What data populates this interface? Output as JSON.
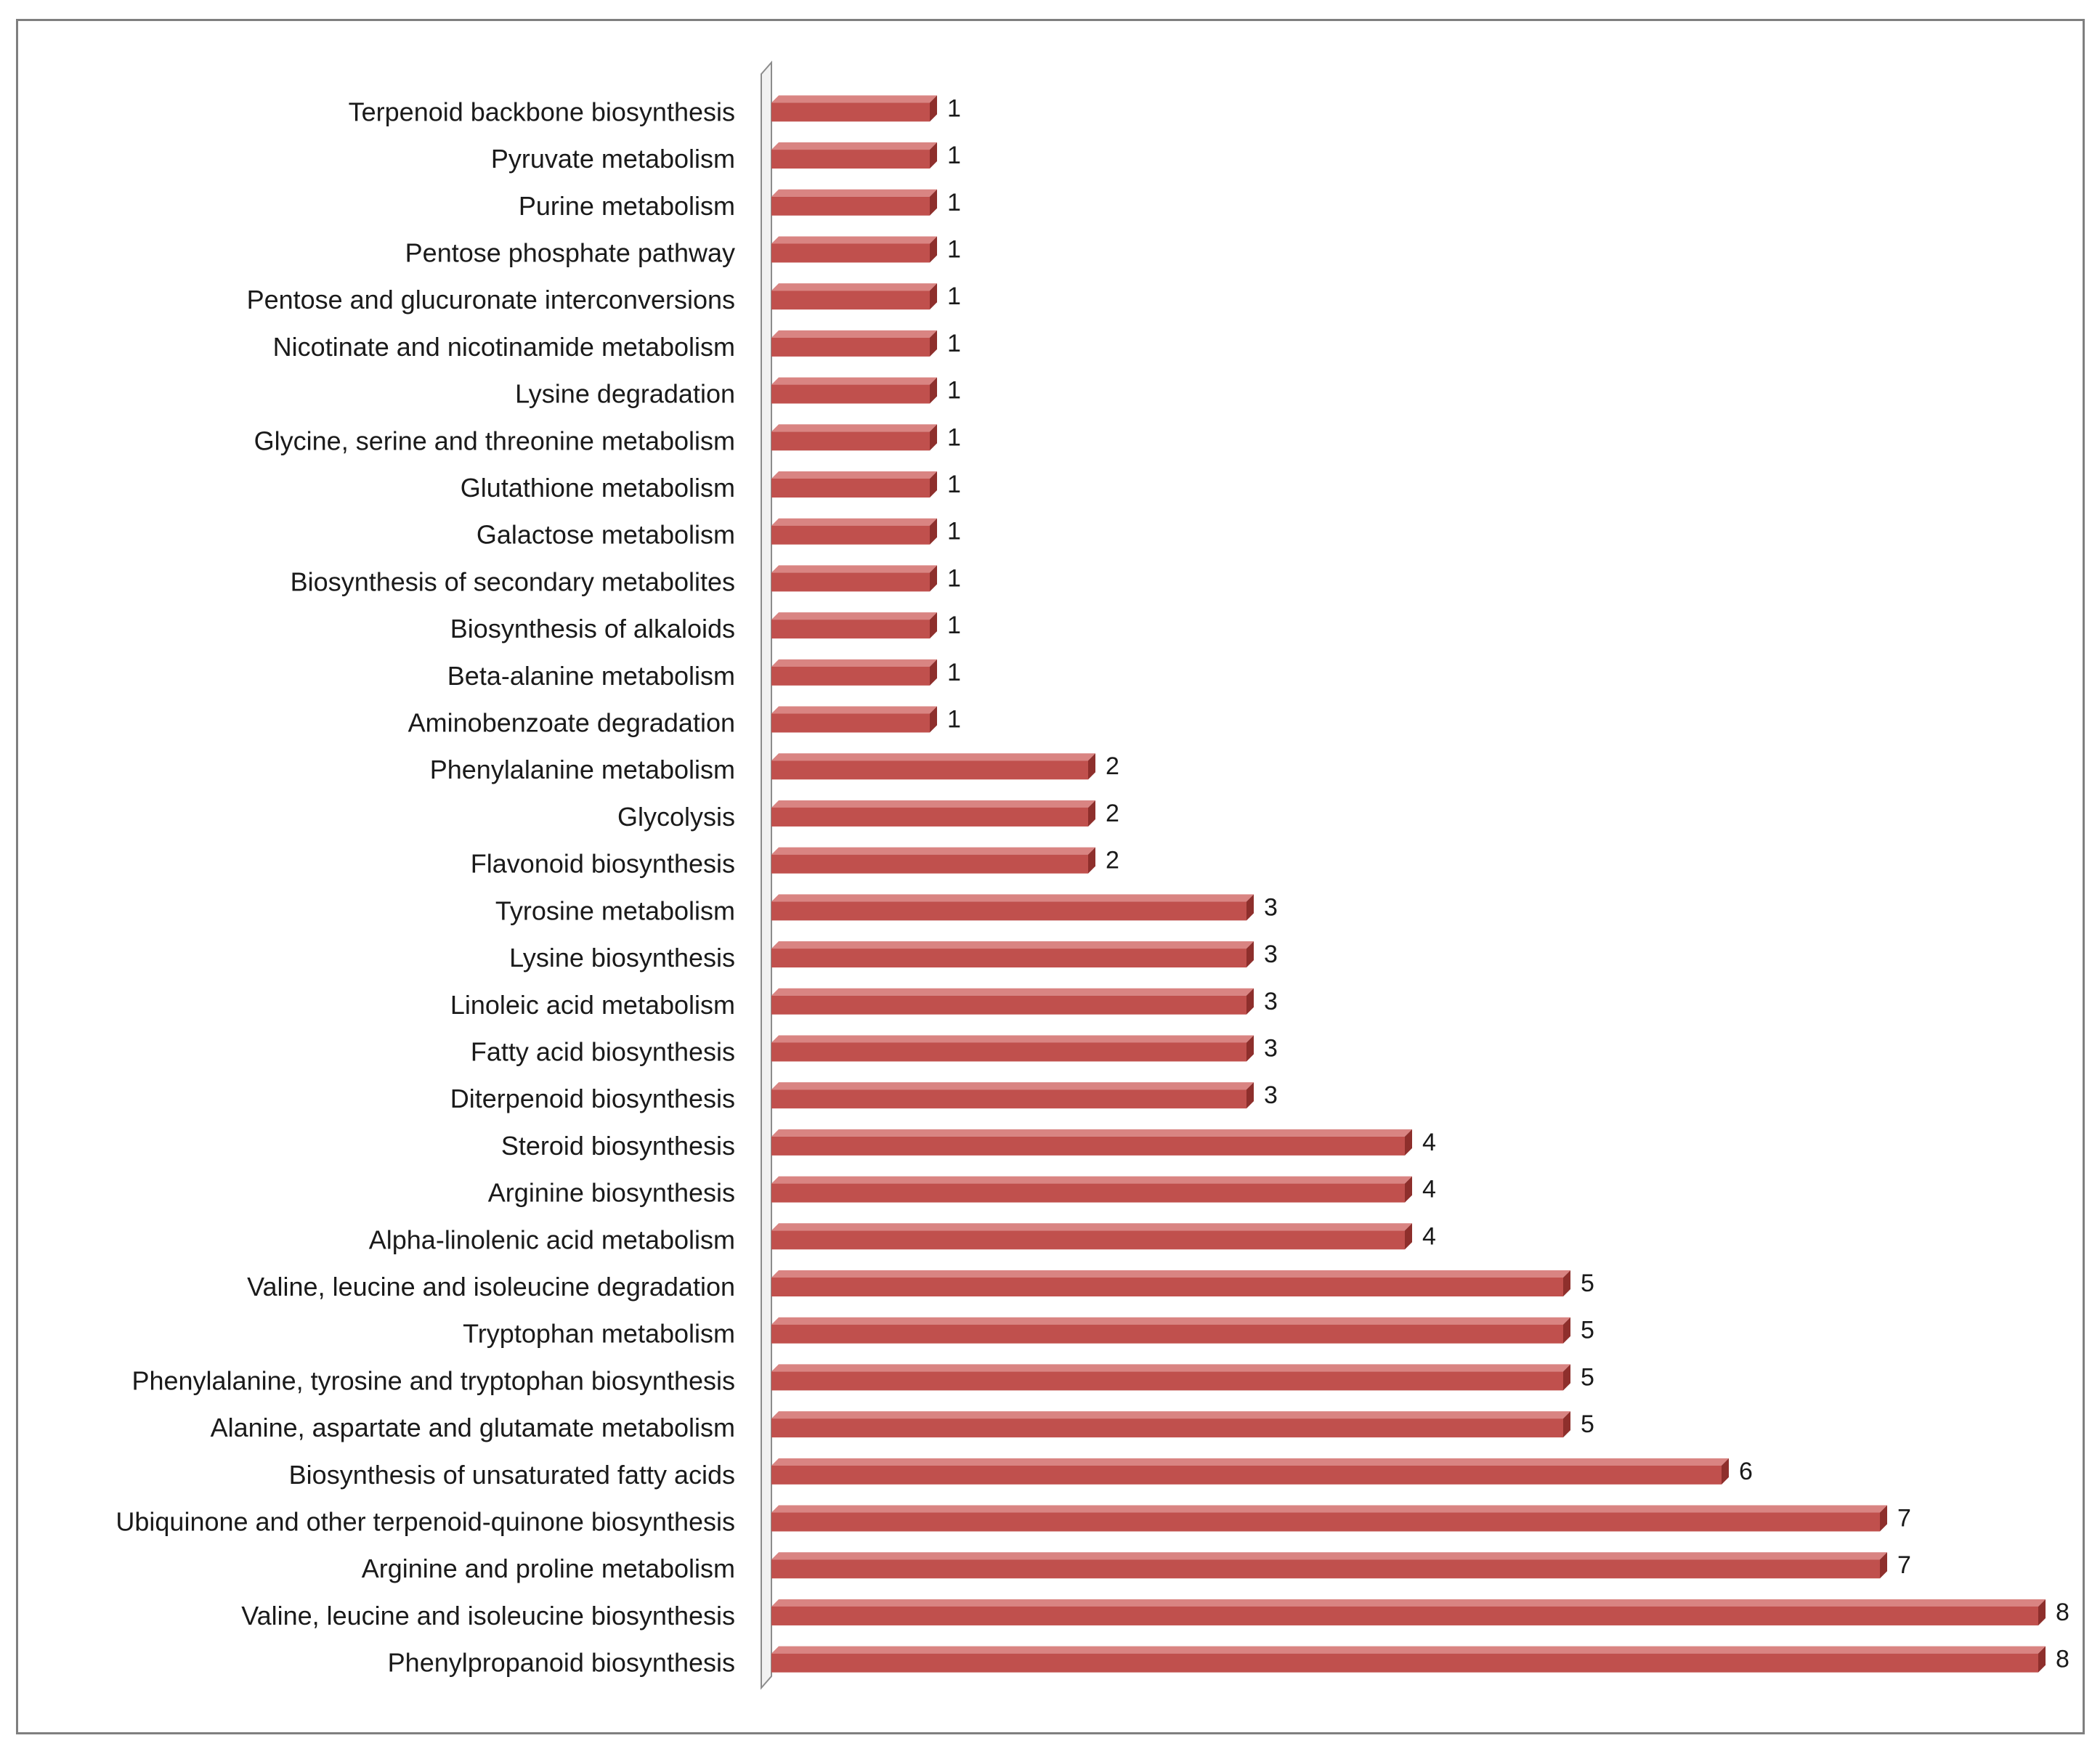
{
  "chart_data": {
    "type": "bar",
    "orientation": "horizontal",
    "title": "",
    "xlabel": "",
    "ylabel": "",
    "xlim": [
      0,
      8
    ],
    "grid": false,
    "legend": "none",
    "bar_color": "#c0504d",
    "categories": [
      "Terpenoid backbone biosynthesis",
      "Pyruvate metabolism",
      "Purine metabolism",
      "Pentose phosphate pathway",
      "Pentose and glucuronate interconversions",
      "Nicotinate and nicotinamide metabolism",
      "Lysine degradation",
      "Glycine, serine and threonine metabolism",
      "Glutathione metabolism",
      "Galactose metabolism",
      "Biosynthesis of secondary metabolites",
      "Biosynthesis of alkaloids",
      "Beta-alanine metabolism",
      "Aminobenzoate degradation",
      "Phenylalanine metabolism",
      "Glycolysis",
      "Flavonoid biosynthesis",
      "Tyrosine metabolism",
      "Lysine biosynthesis",
      "Linoleic acid metabolism",
      "Fatty acid biosynthesis",
      "Diterpenoid biosynthesis",
      "Steroid biosynthesis",
      "Arginine biosynthesis",
      "Alpha-linolenic acid metabolism",
      "Valine, leucine and isoleucine degradation",
      "Tryptophan metabolism",
      "Phenylalanine, tyrosine and tryptophan biosynthesis",
      "Alanine, aspartate and glutamate metabolism",
      "Biosynthesis of unsaturated fatty acids",
      "Ubiquinone and other terpenoid-quinone biosynthesis",
      "Arginine and proline metabolism",
      "Valine, leucine and isoleucine biosynthesis",
      "Phenylpropanoid biosynthesis"
    ],
    "values": [
      1,
      1,
      1,
      1,
      1,
      1,
      1,
      1,
      1,
      1,
      1,
      1,
      1,
      1,
      2,
      2,
      2,
      3,
      3,
      3,
      3,
      3,
      4,
      4,
      4,
      5,
      5,
      5,
      5,
      6,
      7,
      7,
      8,
      8
    ]
  }
}
